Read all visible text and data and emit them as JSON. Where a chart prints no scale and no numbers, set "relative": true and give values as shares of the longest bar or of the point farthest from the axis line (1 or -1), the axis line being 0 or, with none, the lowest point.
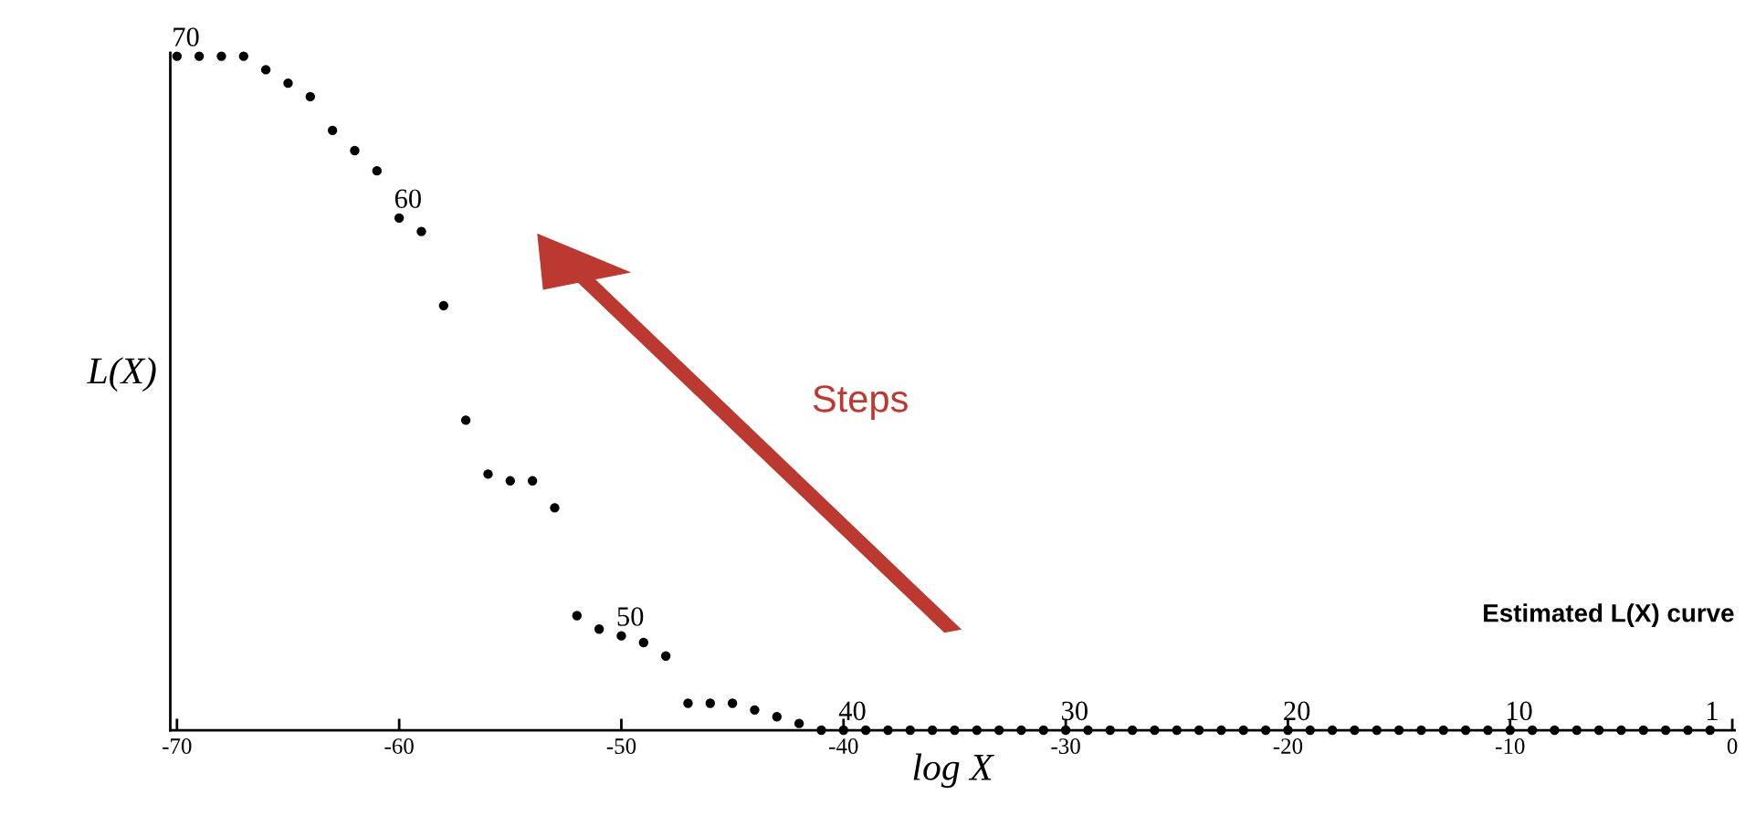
{
  "chart_data": {
    "type": "scatter",
    "relative": true,
    "xlabel": "log X",
    "ylabel": "L(X)",
    "x": [
      -70,
      -69,
      -68,
      -67,
      -66,
      -65,
      -64,
      -63,
      -62,
      -61,
      -60,
      -59,
      -58,
      -57,
      -56,
      -55,
      -54,
      -53,
      -52,
      -51,
      -50,
      -49,
      -48,
      -47,
      -46,
      -45,
      -44,
      -43,
      -42,
      -41,
      -40,
      -39,
      -38,
      -37,
      -36,
      -35,
      -34,
      -33,
      -32,
      -31,
      -30,
      -29,
      -28,
      -27,
      -26,
      -25,
      -24,
      -23,
      -22,
      -21,
      -20,
      -19,
      -18,
      -17,
      -16,
      -15,
      -14,
      -13,
      -12,
      -11,
      -10,
      -9,
      -8,
      -7,
      -6,
      -5,
      -4,
      -3,
      -2,
      -1
    ],
    "series": [
      {
        "color": "#000000",
        "values": [
          1.0,
          1.0,
          1.0,
          1.0,
          0.98,
          0.96,
          0.94,
          0.89,
          0.86,
          0.83,
          0.76,
          0.74,
          0.63,
          0.46,
          0.38,
          0.37,
          0.37,
          0.33,
          0.17,
          0.15,
          0.14,
          0.13,
          0.11,
          0.04,
          0.04,
          0.04,
          0.03,
          0.02,
          0.01,
          0,
          0,
          0,
          0,
          0,
          0,
          0,
          0,
          0,
          0,
          0,
          0,
          0,
          0,
          0,
          0,
          0,
          0,
          0,
          0,
          0,
          0,
          0,
          0,
          0,
          0,
          0,
          0,
          0,
          0,
          0,
          0,
          0,
          0,
          0,
          0,
          0,
          0,
          0,
          0,
          0
        ]
      }
    ],
    "xlim": [
      -70.3,
      0.1
    ],
    "xticks": [
      -70,
      -60,
      -50,
      -40,
      -30,
      -20,
      -10,
      0
    ],
    "marker": "circle",
    "grid": false,
    "legend": false,
    "annotations": [
      {
        "text": "70",
        "x": -70,
        "y": 1.0
      },
      {
        "text": "60",
        "x": -60,
        "y": 0.76
      },
      {
        "text": "50",
        "x": -50,
        "y": 0.14
      },
      {
        "text": "40",
        "x": -40,
        "y": 0
      },
      {
        "text": "30",
        "x": -30,
        "y": 0
      },
      {
        "text": "20",
        "x": -20,
        "y": 0
      },
      {
        "text": "10",
        "x": -10,
        "y": 0
      },
      {
        "text": "1",
        "x": -1,
        "y": 0
      },
      "Steps",
      "Estimated L(X) curve"
    ]
  }
}
